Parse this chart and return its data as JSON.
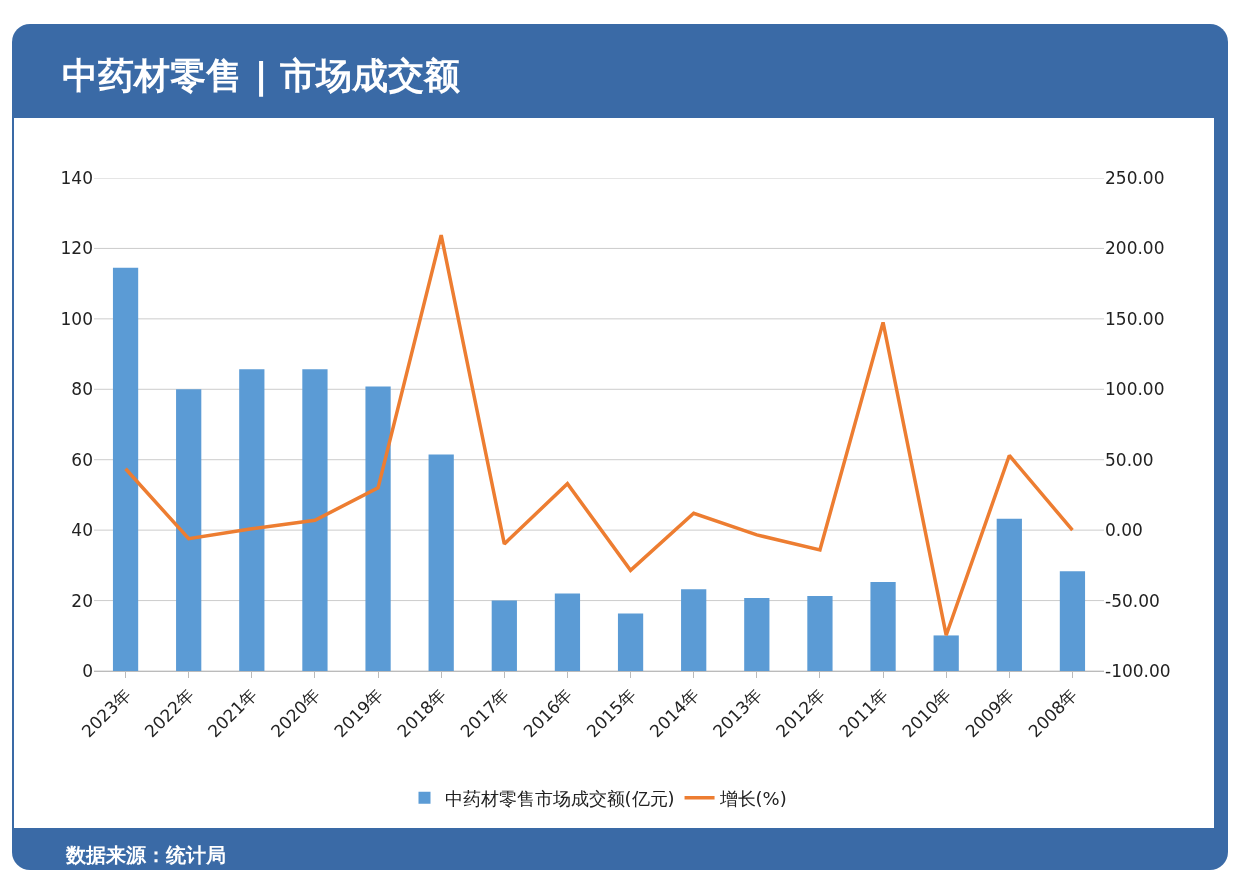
{
  "chart_data": {
    "type": "bar",
    "title": "中药材零售 | 市场成交额",
    "categories": [
      "2023年",
      "2022年",
      "2021年",
      "2020年",
      "2019年",
      "2018年",
      "2017年",
      "2016年",
      "2015年",
      "2014年",
      "2013年",
      "2012年",
      "2011年",
      "2010年",
      "2009年",
      "2008年"
    ],
    "series": [
      {
        "name": "中药材零售市场成交额(亿元)",
        "color": "#5b9bd5",
        "values": [
          114.5,
          80,
          85.7,
          85.7,
          80.8,
          61.5,
          20,
          22,
          16.3,
          23.2,
          20.7,
          21.3,
          25.3,
          10.1,
          43.2,
          28.3
        ]
      },
      {
        "name": "增长(%)",
        "type": "line",
        "axis": "y2",
        "color": "#ed7d31",
        "values": [
          43.6,
          -6.1,
          1,
          7,
          30,
          209.5,
          -9.8,
          33,
          -28.5,
          12,
          -3.4,
          -14,
          147.5,
          -74.6,
          53,
          0
        ]
      }
    ],
    "ylim": [
      0,
      140
    ],
    "yticks": [
      0,
      20,
      40,
      60,
      80,
      100,
      120,
      140
    ],
    "y2lim": [
      -100,
      250
    ],
    "y2ticks": [
      {
        "value": -100,
        "label": "-100.00"
      },
      {
        "value": -50,
        "label": "-50.00"
      },
      {
        "value": 0,
        "label": "0.00"
      },
      {
        "value": 50,
        "label": "50.00"
      },
      {
        "value": 100,
        "label": "100.00"
      },
      {
        "value": 150,
        "label": "150.00"
      },
      {
        "value": 200,
        "label": "200.00"
      },
      {
        "value": 250,
        "label": "250.00"
      }
    ],
    "grid": "y",
    "legend": "bottom",
    "marker": "none",
    "line_style": "solid",
    "annotations": [
      "数据来源：统计局"
    ]
  }
}
